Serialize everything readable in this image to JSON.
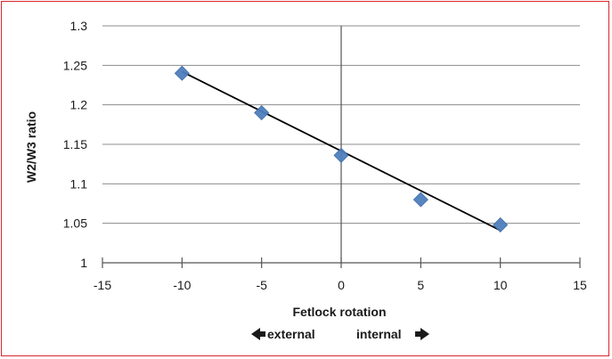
{
  "chart_data": {
    "type": "scatter",
    "title": "",
    "xlabel": "Fetlock rotation",
    "ylabel": "W2/W3 ratio",
    "direction_labels": {
      "left": "external",
      "right": "internal"
    },
    "xlim": [
      -15,
      15
    ],
    "ylim": [
      1,
      1.3
    ],
    "x_ticks": [
      "-15",
      "-10",
      "-5",
      "0",
      "5",
      "10",
      "15"
    ],
    "y_ticks": [
      "1",
      "1.05",
      "1.1",
      "1.15",
      "1.2",
      "1.25",
      "1.3"
    ],
    "series": [
      {
        "x": [
          -10,
          -5,
          0,
          5,
          10
        ],
        "y": [
          1.24,
          1.19,
          1.136,
          1.08,
          1.048
        ]
      }
    ],
    "trendline": {
      "type": "linear",
      "x": [
        -10,
        10
      ],
      "y": [
        1.242,
        1.041
      ]
    },
    "grid": true,
    "marker_color": "#4f7fbd",
    "line_color": "#000000",
    "frame_color": "#d9262c"
  }
}
